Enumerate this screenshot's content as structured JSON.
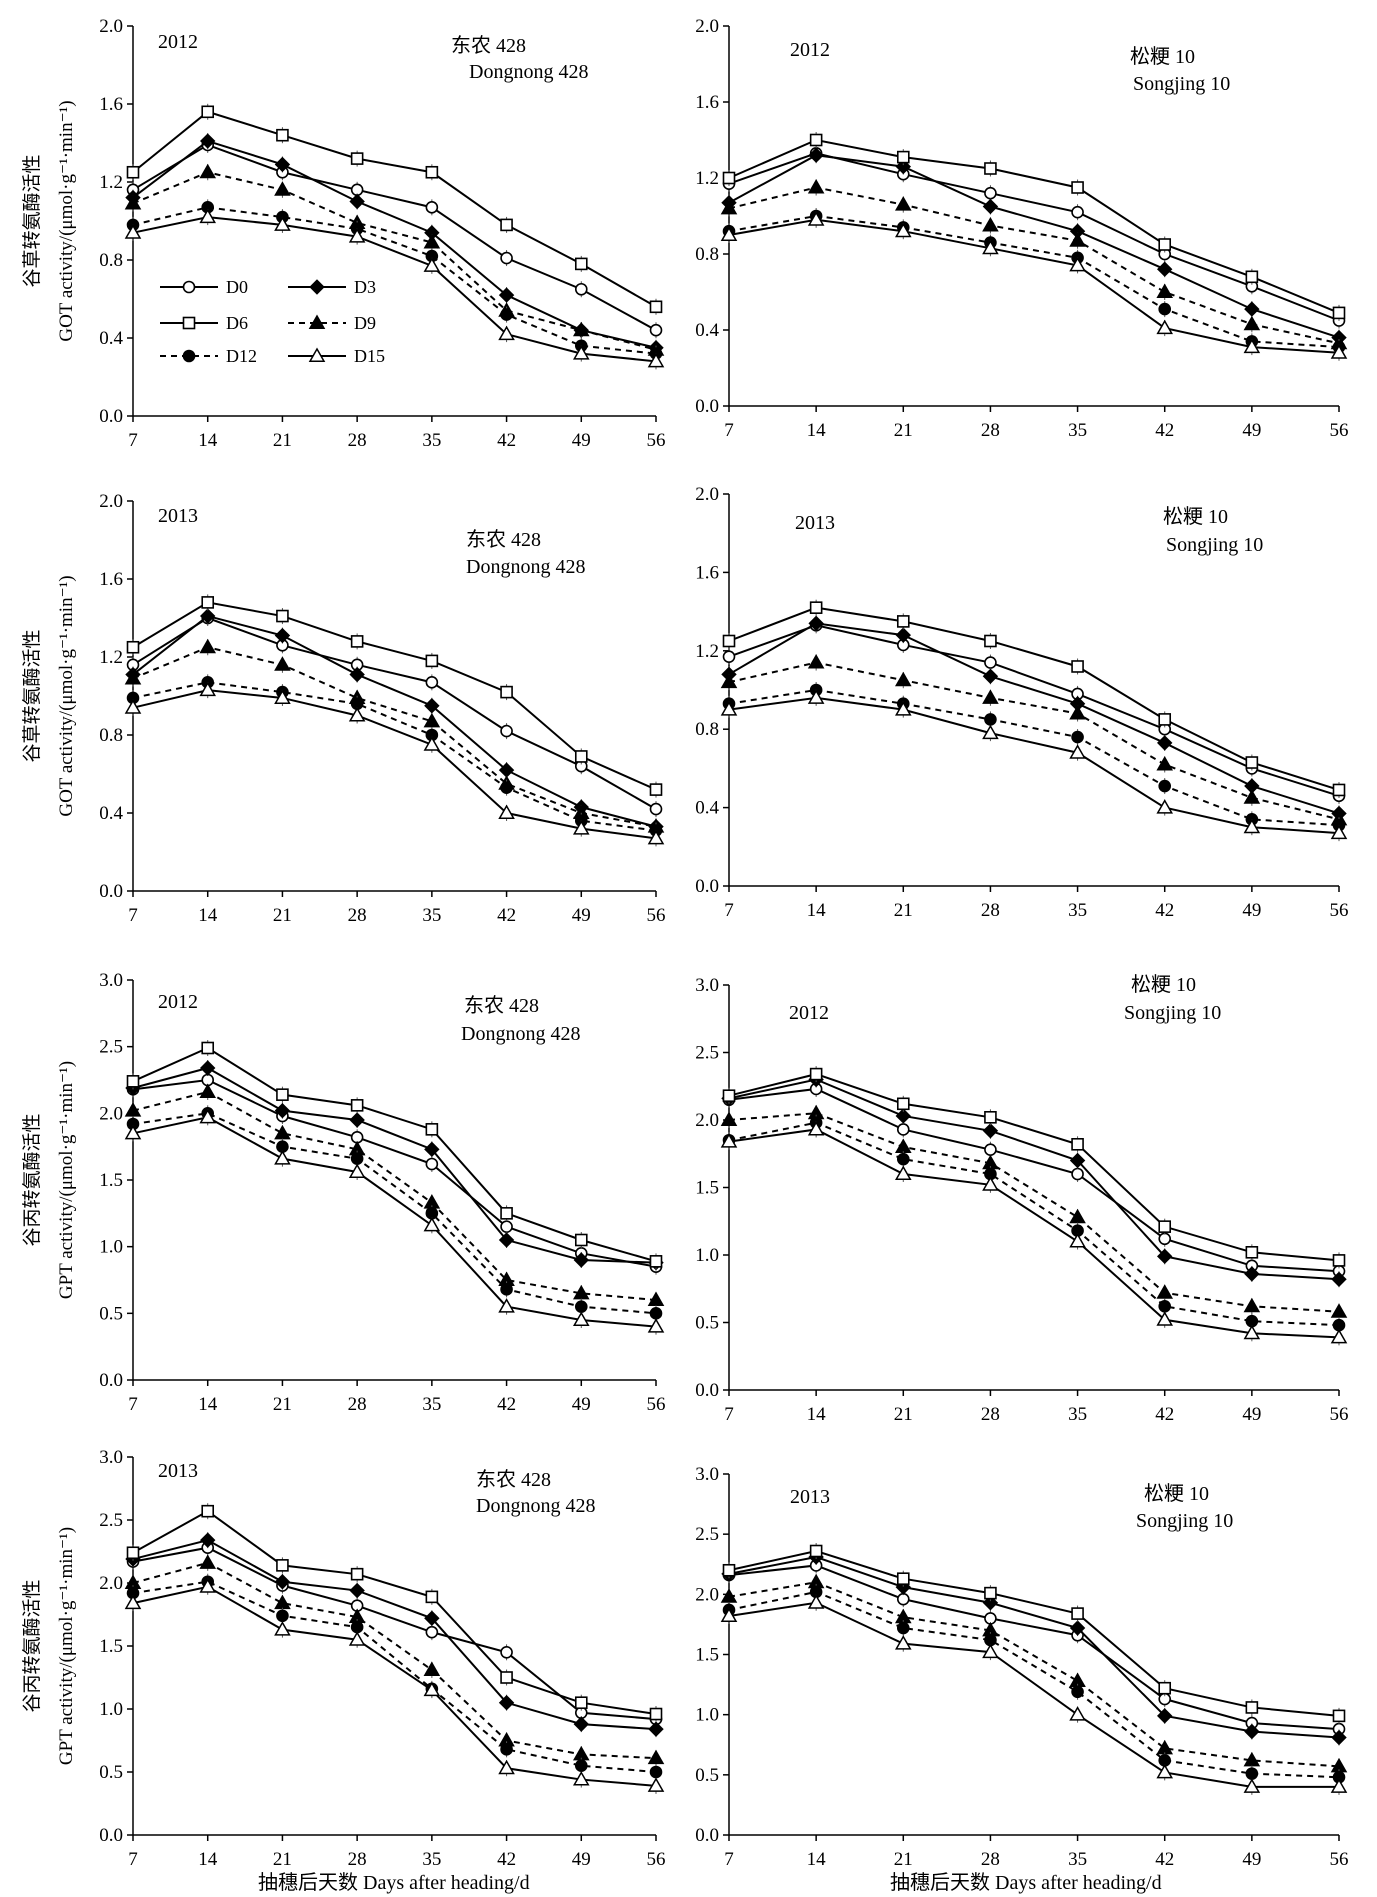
{
  "legend": [
    {
      "key": "D0",
      "label": "D0"
    },
    {
      "key": "D3",
      "label": "D3"
    },
    {
      "key": "D6",
      "label": "D6"
    },
    {
      "key": "D9",
      "label": "D9"
    },
    {
      "key": "D12",
      "label": "D12"
    },
    {
      "key": "D15",
      "label": "D15"
    }
  ],
  "series_style": {
    "D0": {
      "marker": "circle-open",
      "dash": "solid"
    },
    "D3": {
      "marker": "diamond-filled",
      "dash": "solid"
    },
    "D6": {
      "marker": "square-open",
      "dash": "solid"
    },
    "D9": {
      "marker": "triangle-filled",
      "dash": "dashed"
    },
    "D12": {
      "marker": "circle-filled",
      "dash": "dashed"
    },
    "D15": {
      "marker": "triangle-open",
      "dash": "solid"
    }
  },
  "x_axis_label": "抽穗后天数 Days after heading/d",
  "chart_data": [
    {
      "type": "line",
      "year": "2012",
      "cultivar_cn": "东农 428",
      "cultivar_en": "Dongnong 428",
      "ylabel_cn": "谷草转氨酶活性",
      "ylabel_en": "GOT activity/(μmol·g⁻¹·min⁻¹)",
      "x": [
        7,
        14,
        21,
        28,
        35,
        42,
        49,
        56
      ],
      "ylim": [
        0,
        2.0
      ],
      "yticks": [
        "0.0",
        "0.4",
        "0.8",
        "1.2",
        "1.6",
        "2.0"
      ],
      "series": [
        {
          "name": "D0",
          "values": [
            1.16,
            1.39,
            1.25,
            1.16,
            1.07,
            0.81,
            0.65,
            0.44
          ]
        },
        {
          "name": "D3",
          "values": [
            1.12,
            1.41,
            1.29,
            1.1,
            0.94,
            0.62,
            0.44,
            0.35
          ]
        },
        {
          "name": "D6",
          "values": [
            1.25,
            1.56,
            1.44,
            1.32,
            1.25,
            0.98,
            0.78,
            0.56
          ]
        },
        {
          "name": "D9",
          "values": [
            1.09,
            1.25,
            1.16,
            0.99,
            0.89,
            0.54,
            0.44,
            0.34
          ]
        },
        {
          "name": "D12",
          "values": [
            0.98,
            1.07,
            1.02,
            0.96,
            0.82,
            0.52,
            0.36,
            0.32
          ]
        },
        {
          "name": "D15",
          "values": [
            0.94,
            1.02,
            0.98,
            0.92,
            0.77,
            0.42,
            0.32,
            0.28
          ]
        }
      ]
    },
    {
      "type": "line",
      "year": "2012",
      "cultivar_cn": "松粳 10",
      "cultivar_en": "Songjing 10",
      "ylabel_cn": "",
      "ylabel_en": "",
      "x": [
        7,
        14,
        21,
        28,
        35,
        42,
        49,
        56
      ],
      "ylim": [
        0,
        2.0
      ],
      "yticks": [
        "0.0",
        "0.4",
        "0.8",
        "1.2",
        "1.6",
        "2.0"
      ],
      "series": [
        {
          "name": "D0",
          "values": [
            1.17,
            1.33,
            1.22,
            1.12,
            1.02,
            0.8,
            0.63,
            0.45
          ]
        },
        {
          "name": "D3",
          "values": [
            1.07,
            1.32,
            1.26,
            1.05,
            0.92,
            0.72,
            0.51,
            0.36
          ]
        },
        {
          "name": "D6",
          "values": [
            1.2,
            1.4,
            1.31,
            1.25,
            1.15,
            0.85,
            0.68,
            0.49
          ]
        },
        {
          "name": "D9",
          "values": [
            1.04,
            1.15,
            1.06,
            0.95,
            0.87,
            0.6,
            0.43,
            0.33
          ]
        },
        {
          "name": "D12",
          "values": [
            0.92,
            1.0,
            0.94,
            0.86,
            0.78,
            0.51,
            0.34,
            0.31
          ]
        },
        {
          "name": "D15",
          "values": [
            0.9,
            0.98,
            0.92,
            0.83,
            0.74,
            0.41,
            0.31,
            0.28
          ]
        }
      ]
    },
    {
      "type": "line",
      "year": "2013",
      "cultivar_cn": "东农 428",
      "cultivar_en": "Dongnong 428",
      "ylabel_cn": "谷草转氨酶活性",
      "ylabel_en": "GOT activity/(μmol·g⁻¹·min⁻¹)",
      "x": [
        7,
        14,
        21,
        28,
        35,
        42,
        49,
        56
      ],
      "ylim": [
        0,
        2.0
      ],
      "yticks": [
        "0.0",
        "0.4",
        "0.8",
        "1.2",
        "1.6",
        "2.0"
      ],
      "series": [
        {
          "name": "D0",
          "values": [
            1.16,
            1.4,
            1.26,
            1.16,
            1.07,
            0.82,
            0.64,
            0.42
          ]
        },
        {
          "name": "D3",
          "values": [
            1.11,
            1.41,
            1.31,
            1.11,
            0.95,
            0.62,
            0.43,
            0.33
          ]
        },
        {
          "name": "D6",
          "values": [
            1.25,
            1.48,
            1.41,
            1.28,
            1.18,
            1.02,
            0.69,
            0.52
          ]
        },
        {
          "name": "D9",
          "values": [
            1.09,
            1.25,
            1.16,
            0.99,
            0.87,
            0.55,
            0.4,
            0.33
          ]
        },
        {
          "name": "D12",
          "values": [
            0.99,
            1.07,
            1.02,
            0.96,
            0.8,
            0.53,
            0.36,
            0.31
          ]
        },
        {
          "name": "D15",
          "values": [
            0.94,
            1.03,
            0.99,
            0.9,
            0.75,
            0.4,
            0.32,
            0.27
          ]
        }
      ]
    },
    {
      "type": "line",
      "year": "2013",
      "cultivar_cn": "松粳 10",
      "cultivar_en": "Songjing 10",
      "ylabel_cn": "",
      "ylabel_en": "",
      "x": [
        7,
        14,
        21,
        28,
        35,
        42,
        49,
        56
      ],
      "ylim": [
        0,
        2.0
      ],
      "yticks": [
        "0.0",
        "0.4",
        "0.8",
        "1.2",
        "1.6",
        "2.0"
      ],
      "series": [
        {
          "name": "D0",
          "values": [
            1.17,
            1.33,
            1.23,
            1.14,
            0.98,
            0.8,
            0.6,
            0.46
          ]
        },
        {
          "name": "D3",
          "values": [
            1.08,
            1.34,
            1.28,
            1.07,
            0.93,
            0.73,
            0.51,
            0.37
          ]
        },
        {
          "name": "D6",
          "values": [
            1.25,
            1.42,
            1.35,
            1.25,
            1.12,
            0.85,
            0.63,
            0.49
          ]
        },
        {
          "name": "D9",
          "values": [
            1.04,
            1.14,
            1.05,
            0.96,
            0.88,
            0.62,
            0.45,
            0.34
          ]
        },
        {
          "name": "D12",
          "values": [
            0.93,
            1.0,
            0.93,
            0.85,
            0.76,
            0.51,
            0.34,
            0.31
          ]
        },
        {
          "name": "D15",
          "values": [
            0.9,
            0.96,
            0.9,
            0.78,
            0.68,
            0.4,
            0.3,
            0.27
          ]
        }
      ]
    },
    {
      "type": "line",
      "year": "2012",
      "cultivar_cn": "东农 428",
      "cultivar_en": "Dongnong 428",
      "ylabel_cn": "谷丙转氨酶活性",
      "ylabel_en": "GPT activity/(μmol·g⁻¹·min⁻¹)",
      "x": [
        7,
        14,
        21,
        28,
        35,
        42,
        49,
        56
      ],
      "ylim": [
        0,
        3.0
      ],
      "yticks": [
        "0.0",
        "0.5",
        "1.0",
        "1.5",
        "2.0",
        "2.5",
        "3.0"
      ],
      "series": [
        {
          "name": "D0",
          "values": [
            2.18,
            2.25,
            1.98,
            1.82,
            1.62,
            1.15,
            0.95,
            0.85
          ]
        },
        {
          "name": "D3",
          "values": [
            2.19,
            2.34,
            2.02,
            1.95,
            1.73,
            1.05,
            0.9,
            0.88
          ]
        },
        {
          "name": "D6",
          "values": [
            2.24,
            2.49,
            2.14,
            2.06,
            1.88,
            1.25,
            1.05,
            0.89
          ]
        },
        {
          "name": "D9",
          "values": [
            2.02,
            2.16,
            1.85,
            1.73,
            1.33,
            0.75,
            0.65,
            0.6
          ]
        },
        {
          "name": "D12",
          "values": [
            1.92,
            2.0,
            1.75,
            1.66,
            1.25,
            0.68,
            0.55,
            0.5
          ]
        },
        {
          "name": "D15",
          "values": [
            1.85,
            1.97,
            1.66,
            1.56,
            1.16,
            0.55,
            0.45,
            0.4
          ]
        }
      ]
    },
    {
      "type": "line",
      "year": "2012",
      "cultivar_cn": "松粳 10",
      "cultivar_en": "Songjing 10",
      "ylabel_cn": "",
      "ylabel_en": "",
      "x": [
        7,
        14,
        21,
        28,
        35,
        42,
        49,
        56
      ],
      "ylim": [
        0,
        3.0
      ],
      "yticks": [
        "0.0",
        "0.5",
        "1.0",
        "1.5",
        "2.0",
        "2.5",
        "3.0"
      ],
      "series": [
        {
          "name": "D0",
          "values": [
            2.15,
            2.23,
            1.93,
            1.78,
            1.6,
            1.12,
            0.92,
            0.88
          ]
        },
        {
          "name": "D3",
          "values": [
            2.16,
            2.3,
            2.03,
            1.92,
            1.7,
            0.99,
            0.86,
            0.82
          ]
        },
        {
          "name": "D6",
          "values": [
            2.18,
            2.34,
            2.12,
            2.02,
            1.82,
            1.21,
            1.02,
            0.96
          ]
        },
        {
          "name": "D9",
          "values": [
            2.0,
            2.05,
            1.8,
            1.68,
            1.28,
            0.72,
            0.62,
            0.58
          ]
        },
        {
          "name": "D12",
          "values": [
            1.85,
            1.98,
            1.71,
            1.6,
            1.18,
            0.62,
            0.51,
            0.48
          ]
        },
        {
          "name": "D15",
          "values": [
            1.84,
            1.93,
            1.6,
            1.52,
            1.1,
            0.52,
            0.42,
            0.39
          ]
        }
      ]
    },
    {
      "type": "line",
      "year": "2013",
      "cultivar_cn": "东农 428",
      "cultivar_en": "Dongnong 428",
      "ylabel_cn": "谷丙转氨酶活性",
      "ylabel_en": "GPT activity/(μmol·g⁻¹·min⁻¹)",
      "x": [
        7,
        14,
        21,
        28,
        35,
        42,
        49,
        56
      ],
      "ylim": [
        0,
        3.0
      ],
      "yticks": [
        "0.0",
        "0.5",
        "1.0",
        "1.5",
        "2.0",
        "2.5",
        "3.0"
      ],
      "series": [
        {
          "name": "D0",
          "values": [
            2.17,
            2.28,
            1.98,
            1.82,
            1.61,
            1.45,
            0.97,
            0.92
          ]
        },
        {
          "name": "D3",
          "values": [
            2.19,
            2.34,
            2.01,
            1.94,
            1.72,
            1.05,
            0.88,
            0.84
          ]
        },
        {
          "name": "D6",
          "values": [
            2.24,
            2.57,
            2.14,
            2.07,
            1.89,
            1.25,
            1.05,
            0.96
          ]
        },
        {
          "name": "D9",
          "values": [
            2.0,
            2.16,
            1.84,
            1.73,
            1.31,
            0.75,
            0.64,
            0.61
          ]
        },
        {
          "name": "D12",
          "values": [
            1.92,
            2.01,
            1.74,
            1.65,
            1.16,
            0.68,
            0.55,
            0.5
          ]
        },
        {
          "name": "D15",
          "values": [
            1.84,
            1.97,
            1.63,
            1.55,
            1.15,
            0.53,
            0.44,
            0.39
          ]
        }
      ]
    },
    {
      "type": "line",
      "year": "2013",
      "cultivar_cn": "松粳 10",
      "cultivar_en": "Songjing 10",
      "ylabel_cn": "",
      "ylabel_en": "",
      "x": [
        7,
        14,
        21,
        28,
        35,
        42,
        49,
        56
      ],
      "ylim": [
        0,
        3.0
      ],
      "yticks": [
        "0.0",
        "0.5",
        "1.0",
        "1.5",
        "2.0",
        "2.5",
        "3.0"
      ],
      "series": [
        {
          "name": "D0",
          "values": [
            2.16,
            2.24,
            1.96,
            1.8,
            1.66,
            1.13,
            0.93,
            0.88
          ]
        },
        {
          "name": "D3",
          "values": [
            2.17,
            2.31,
            2.06,
            1.93,
            1.72,
            0.99,
            0.86,
            0.81
          ]
        },
        {
          "name": "D6",
          "values": [
            2.2,
            2.36,
            2.13,
            2.01,
            1.84,
            1.22,
            1.06,
            0.99
          ]
        },
        {
          "name": "D9",
          "values": [
            1.98,
            2.1,
            1.81,
            1.7,
            1.28,
            0.72,
            0.62,
            0.57
          ]
        },
        {
          "name": "D12",
          "values": [
            1.87,
            2.02,
            1.72,
            1.62,
            1.19,
            0.62,
            0.51,
            0.48
          ]
        },
        {
          "name": "D15",
          "values": [
            1.82,
            1.93,
            1.59,
            1.52,
            1.0,
            0.52,
            0.4,
            0.4
          ]
        }
      ]
    }
  ]
}
